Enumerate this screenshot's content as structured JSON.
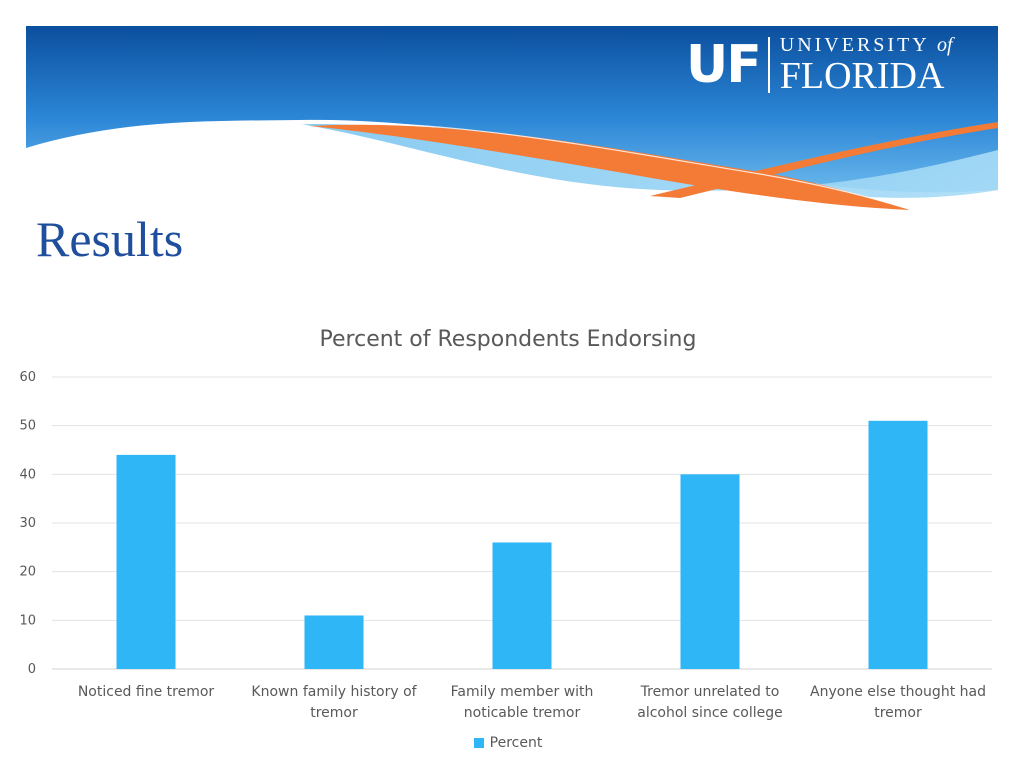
{
  "branding": {
    "logo_mark": "UF",
    "logo_university": "UNIVERSITY",
    "logo_of": "of",
    "logo_florida": "FLORIDA"
  },
  "slide": {
    "title": "Results"
  },
  "colors": {
    "banner_blue": "#1565b8",
    "orange": "#f47b36",
    "title_blue": "#1f4e9c",
    "bar": "#2eb6f7"
  },
  "chart_data": {
    "type": "bar",
    "title": "Percent of Respondents Endorsing",
    "categories": [
      [
        "Noticed fine tremor"
      ],
      [
        "Known family history of",
        "tremor"
      ],
      [
        "Family member with",
        "noticable tremor"
      ],
      [
        "Tremor unrelated to",
        "alcohol since college"
      ],
      [
        "Anyone else thought had",
        "tremor"
      ]
    ],
    "series": [
      {
        "name": "Percent",
        "values": [
          44,
          11,
          26,
          40,
          51
        ]
      }
    ],
    "ylim": [
      0,
      60
    ],
    "yticks": [
      0,
      10,
      20,
      30,
      40,
      50,
      60
    ],
    "grid": true,
    "legend": "bottom"
  }
}
